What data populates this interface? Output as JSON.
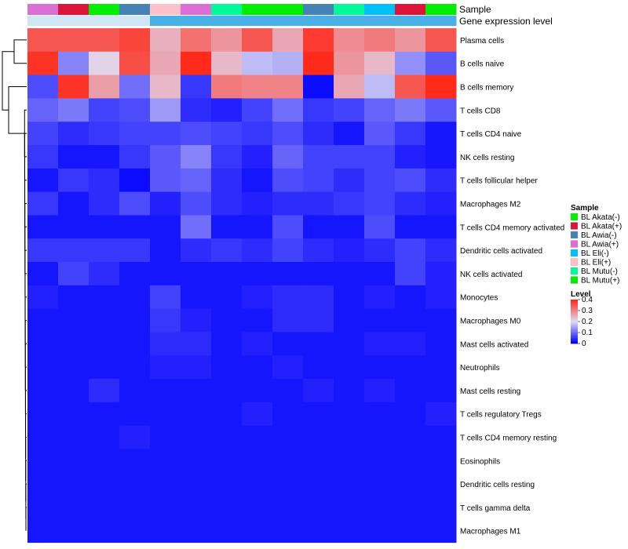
{
  "chart_data": {
    "type": "heatmap",
    "annotation_rows": [
      "Sample",
      "Gene expression level"
    ],
    "sample_annotation": [
      "BL Awia(+)",
      "BL Akata(+)",
      "BL Mutu(+)",
      "BL Awia(-)",
      "BL Eli(+)",
      "BL Awia(+)",
      "BL Mutu(-)",
      "BL Mutu(+)",
      "BL Akata(-)",
      "BL Awia(-)",
      "BL Mutu(-)",
      "BL Eli(-)",
      "BL Akata(+)",
      "BL Akata(-)"
    ],
    "expression_annotation": [
      0.1,
      0.1,
      0.1,
      0.1,
      0.15,
      0.15,
      0.15,
      0.15,
      0.15,
      0.15,
      0.15,
      0.15,
      0.15,
      0.15
    ],
    "rows": [
      "Plasma cells",
      "B cells naive",
      "B cells memory",
      "T cells CD8",
      "T cells CD4 naive",
      "NK cells resting",
      "T cells follicular helper",
      "Macrophages M2",
      "T cells CD4 memory activated",
      "Dendritic cells activated",
      "NK cells activated",
      "Monocytes",
      "Macrophages M0",
      "Mast cells activated",
      "Neutrophils",
      "Mast cells resting",
      "T cells regulatory  Tregs",
      "T cells CD4 memory resting",
      "Eosinophils",
      "Dendritic cells resting",
      "T cells gamma delta",
      "Macrophages M1"
    ],
    "values": [
      [
        0.35,
        0.35,
        0.35,
        0.37,
        0.25,
        0.32,
        0.28,
        0.35,
        0.26,
        0.38,
        0.29,
        0.31,
        0.28,
        0.35
      ],
      [
        0.39,
        0.12,
        0.21,
        0.36,
        0.26,
        0.4,
        0.24,
        0.17,
        0.16,
        0.4,
        0.28,
        0.24,
        0.13,
        0.08
      ],
      [
        0.07,
        0.39,
        0.27,
        0.1,
        0.24,
        0.05,
        0.31,
        0.3,
        0.3,
        0.01,
        0.26,
        0.17,
        0.35,
        0.4
      ],
      [
        0.09,
        0.11,
        0.06,
        0.07,
        0.14,
        0.04,
        0.03,
        0.06,
        0.1,
        0.05,
        0.06,
        0.09,
        0.11,
        0.08
      ],
      [
        0.06,
        0.04,
        0.05,
        0.06,
        0.06,
        0.07,
        0.06,
        0.05,
        0.07,
        0.04,
        0.02,
        0.08,
        0.05,
        0.02
      ],
      [
        0.05,
        0.02,
        0.02,
        0.05,
        0.08,
        0.12,
        0.05,
        0.03,
        0.09,
        0.06,
        0.06,
        0.06,
        0.03,
        0.02
      ],
      [
        0.02,
        0.05,
        0.04,
        0.01,
        0.08,
        0.09,
        0.04,
        0.02,
        0.07,
        0.06,
        0.04,
        0.06,
        0.07,
        0.04
      ],
      [
        0.05,
        0.02,
        0.04,
        0.07,
        0.03,
        0.07,
        0.04,
        0.03,
        0.04,
        0.04,
        0.05,
        0.06,
        0.04,
        0.03
      ],
      [
        0.02,
        0.02,
        0.02,
        0.02,
        0.02,
        0.1,
        0.02,
        0.02,
        0.07,
        0.02,
        0.02,
        0.07,
        0.02,
        0.02
      ],
      [
        0.05,
        0.05,
        0.05,
        0.05,
        0.02,
        0.04,
        0.05,
        0.04,
        0.06,
        0.04,
        0.03,
        0.04,
        0.06,
        0.04
      ],
      [
        0.02,
        0.06,
        0.04,
        0.02,
        0.02,
        0.02,
        0.02,
        0.02,
        0.02,
        0.02,
        0.02,
        0.02,
        0.06,
        0.03
      ],
      [
        0.03,
        0.02,
        0.02,
        0.02,
        0.06,
        0.02,
        0.02,
        0.03,
        0.04,
        0.04,
        0.02,
        0.03,
        0.02,
        0.03
      ],
      [
        0.02,
        0.02,
        0.02,
        0.02,
        0.05,
        0.03,
        0.02,
        0.02,
        0.04,
        0.04,
        0.02,
        0.02,
        0.02,
        0.02
      ],
      [
        0.02,
        0.02,
        0.02,
        0.02,
        0.04,
        0.04,
        0.02,
        0.03,
        0.02,
        0.02,
        0.02,
        0.03,
        0.03,
        0.02
      ],
      [
        0.02,
        0.02,
        0.02,
        0.02,
        0.03,
        0.03,
        0.02,
        0.02,
        0.03,
        0.02,
        0.02,
        0.02,
        0.02,
        0.02
      ],
      [
        0.02,
        0.02,
        0.04,
        0.02,
        0.02,
        0.02,
        0.02,
        0.02,
        0.02,
        0.03,
        0.02,
        0.03,
        0.02,
        0.02
      ],
      [
        0.02,
        0.02,
        0.02,
        0.02,
        0.02,
        0.02,
        0.02,
        0.03,
        0.02,
        0.02,
        0.02,
        0.02,
        0.02,
        0.03
      ],
      [
        0.02,
        0.02,
        0.02,
        0.03,
        0.02,
        0.02,
        0.02,
        0.02,
        0.02,
        0.02,
        0.02,
        0.02,
        0.02,
        0.02
      ],
      [
        0.02,
        0.02,
        0.02,
        0.02,
        0.02,
        0.02,
        0.02,
        0.02,
        0.02,
        0.02,
        0.02,
        0.02,
        0.02,
        0.02
      ],
      [
        0.02,
        0.02,
        0.02,
        0.02,
        0.02,
        0.02,
        0.02,
        0.02,
        0.02,
        0.02,
        0.02,
        0.02,
        0.02,
        0.02
      ],
      [
        0.02,
        0.02,
        0.02,
        0.02,
        0.02,
        0.02,
        0.02,
        0.02,
        0.02,
        0.02,
        0.02,
        0.02,
        0.02,
        0.02
      ],
      [
        0.02,
        0.02,
        0.02,
        0.02,
        0.02,
        0.02,
        0.02,
        0.02,
        0.02,
        0.02,
        0.02,
        0.02,
        0.02,
        0.02
      ]
    ],
    "legend_sample": {
      "title": "Sample",
      "entries": [
        {
          "label": "BL Akata(-)",
          "color": "#00ee00"
        },
        {
          "label": "BL Akata(+)",
          "color": "#dc143c"
        },
        {
          "label": "BL Awia(-)",
          "color": "#4682b4"
        },
        {
          "label": "BL Awia(+)",
          "color": "#da70d6"
        },
        {
          "label": "BL Eli(-)",
          "color": "#00bfff"
        },
        {
          "label": "BL Eli(+)",
          "color": "#ffc0cb"
        },
        {
          "label": "BL Mutu(-)",
          "color": "#00fa9a"
        },
        {
          "label": "BL Mutu(+)",
          "color": "#00ee00"
        }
      ]
    },
    "legend_level": {
      "title": "Level",
      "ticks": [
        0.4,
        0.3,
        0.2,
        0.1,
        0
      ],
      "range": [
        0,
        0.4
      ],
      "colors": {
        "low": "#0000ff",
        "mid": "#e0dcf4",
        "high": "#ff2a1a"
      }
    },
    "expression_colors": {
      "low": "#cfe6f5",
      "high": "#4ab0e8"
    }
  }
}
